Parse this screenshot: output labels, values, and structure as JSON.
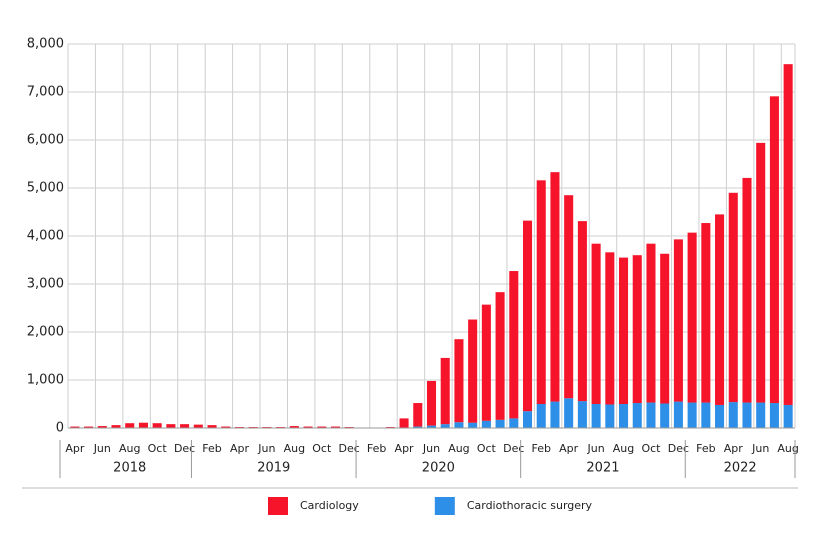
{
  "chart_data": {
    "type": "stacked_bar",
    "categories": [
      "Apr",
      null,
      "Jun",
      null,
      "Aug",
      null,
      "Oct",
      null,
      "Dec",
      null,
      "Feb",
      null,
      "Apr",
      null,
      "Jun",
      null,
      "Aug",
      null,
      "Oct",
      null,
      "Dec",
      null,
      "Feb",
      null,
      "Apr",
      null,
      "Jun",
      null,
      "Aug",
      null,
      "Oct",
      null,
      "Dec",
      null,
      "Feb",
      null,
      "Apr",
      null,
      "Jun",
      null,
      "Aug",
      null,
      "Oct",
      null,
      "Dec",
      null,
      "Feb",
      null,
      "Apr",
      null,
      "Jun",
      null,
      "Aug"
    ],
    "year_groups": [
      {
        "name": "2018",
        "size": 9
      },
      {
        "name": "2019",
        "size": 12
      },
      {
        "name": "2020",
        "size": 12
      },
      {
        "name": "2021",
        "size": 12
      },
      {
        "name": "2022",
        "size": 8
      }
    ],
    "series": [
      {
        "name": "Cardiothoracic surgery",
        "color": "#2e8fe8",
        "values": [
          0,
          0,
          0,
          0,
          0,
          0,
          0,
          0,
          0,
          0,
          0,
          0,
          0,
          0,
          0,
          0,
          0,
          0,
          0,
          0,
          0,
          0,
          0,
          0,
          0,
          30,
          50,
          80,
          120,
          110,
          150,
          170,
          200,
          350,
          500,
          550,
          620,
          560,
          500,
          490,
          500,
          520,
          530,
          510,
          550,
          530,
          530,
          480,
          540,
          530,
          530,
          520,
          480
        ]
      },
      {
        "name": "Cardiology",
        "color": "#f5142a",
        "values": [
          30,
          30,
          40,
          60,
          100,
          110,
          100,
          80,
          80,
          70,
          60,
          30,
          20,
          20,
          20,
          20,
          40,
          30,
          30,
          30,
          20,
          0,
          0,
          20,
          200,
          490,
          930,
          1380,
          1730,
          2150,
          2420,
          2660,
          3070,
          3970,
          4660,
          4780,
          4230,
          3750,
          3340,
          3170,
          3050,
          3080,
          3310,
          3120,
          3380,
          3540,
          3740,
          3970,
          4360,
          4680,
          5410,
          6390,
          7100
        ]
      }
    ],
    "legend_order": [
      1,
      0
    ],
    "ylim": [
      0,
      8000
    ],
    "yticks": [
      0,
      {
        "value": 1000,
        "label": "1,000"
      },
      {
        "value": 2000,
        "label": "2,000"
      },
      {
        "value": 3000,
        "label": "3,000"
      },
      {
        "value": 4000,
        "label": "4,000"
      },
      {
        "value": 5000,
        "label": "5,000"
      },
      {
        "value": 6000,
        "label": "6,000"
      },
      {
        "value": 7000,
        "label": "7,000"
      },
      {
        "value": 8000,
        "label": "8,000"
      }
    ],
    "grid": true
  }
}
